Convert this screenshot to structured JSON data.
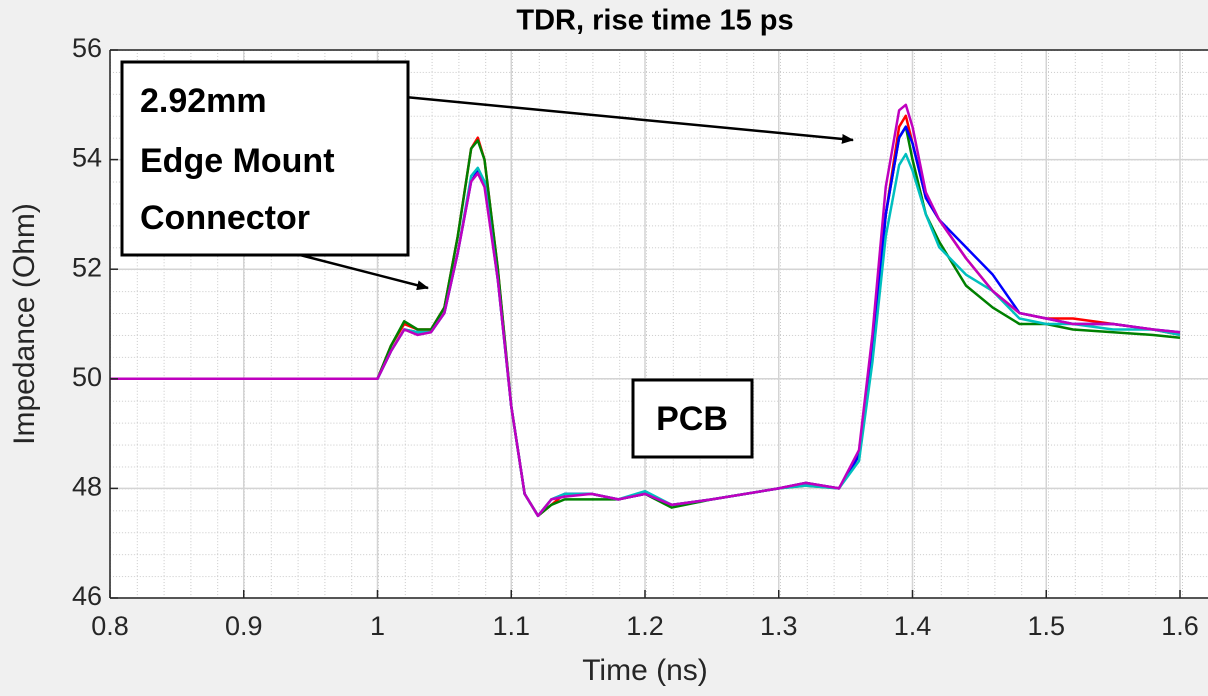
{
  "chart_data": {
    "type": "line",
    "title": "TDR, rise time 15 ps",
    "xlabel": "Time (ns)",
    "ylabel": "Impedance (Ohm)",
    "xlim": [
      0.8,
      1.6
    ],
    "ylim": [
      46,
      56
    ],
    "xticks": [
      0.8,
      0.9,
      1,
      1.1,
      1.2,
      1.3,
      1.4,
      1.5,
      1.6
    ],
    "yticks": [
      46,
      48,
      50,
      52,
      54,
      56
    ],
    "grid": true,
    "x": [
      0.8,
      0.9,
      0.98,
      1.0,
      1.01,
      1.02,
      1.03,
      1.04,
      1.05,
      1.06,
      1.07,
      1.075,
      1.08,
      1.09,
      1.1,
      1.11,
      1.12,
      1.13,
      1.14,
      1.16,
      1.18,
      1.2,
      1.22,
      1.25,
      1.3,
      1.32,
      1.345,
      1.36,
      1.37,
      1.38,
      1.39,
      1.395,
      1.4,
      1.41,
      1.42,
      1.44,
      1.46,
      1.48,
      1.5,
      1.52,
      1.55,
      1.58,
      1.6
    ],
    "series": [
      {
        "color": "#ff0000",
        "values": [
          50,
          50,
          50,
          50,
          50.6,
          51.0,
          50.9,
          50.9,
          51.3,
          52.6,
          54.2,
          54.4,
          54.0,
          52.0,
          49.5,
          47.9,
          47.5,
          47.7,
          47.9,
          47.9,
          47.8,
          47.9,
          47.7,
          47.8,
          48.0,
          48.1,
          48.0,
          48.6,
          50.5,
          53.0,
          54.6,
          54.8,
          54.3,
          53.3,
          52.9,
          52.2,
          51.6,
          51.2,
          51.1,
          51.1,
          51.0,
          50.9,
          50.8
        ]
      },
      {
        "color": "#008000",
        "values": [
          50,
          50,
          50,
          50,
          50.6,
          51.05,
          50.9,
          50.9,
          51.3,
          52.6,
          54.2,
          54.35,
          54.0,
          52.0,
          49.5,
          47.9,
          47.5,
          47.7,
          47.8,
          47.8,
          47.8,
          47.9,
          47.65,
          47.8,
          48.0,
          48.05,
          48.0,
          48.6,
          50.5,
          53.0,
          54.4,
          54.6,
          54.0,
          53.0,
          52.5,
          51.7,
          51.3,
          51.0,
          51.0,
          50.9,
          50.85,
          50.8,
          50.75
        ]
      },
      {
        "color": "#0000ff",
        "values": [
          50,
          50,
          50,
          50,
          50.5,
          50.9,
          50.85,
          50.85,
          51.2,
          52.3,
          53.6,
          53.8,
          53.6,
          51.8,
          49.5,
          47.9,
          47.5,
          47.8,
          47.9,
          47.9,
          47.8,
          47.9,
          47.7,
          47.8,
          48.0,
          48.1,
          48.0,
          48.6,
          50.5,
          53.0,
          54.4,
          54.6,
          54.3,
          53.3,
          52.9,
          52.4,
          51.9,
          51.2,
          51.1,
          51.0,
          51.0,
          50.9,
          50.85
        ]
      },
      {
        "color": "#00bfbf",
        "values": [
          50,
          50,
          50,
          50,
          50.5,
          50.9,
          50.85,
          50.85,
          51.2,
          52.3,
          53.7,
          53.85,
          53.6,
          51.8,
          49.5,
          47.9,
          47.5,
          47.8,
          47.9,
          47.9,
          47.8,
          47.95,
          47.7,
          47.8,
          48.0,
          48.05,
          48.0,
          48.5,
          50.3,
          52.6,
          53.9,
          54.1,
          53.8,
          53.0,
          52.4,
          51.9,
          51.6,
          51.1,
          51.0,
          51.0,
          50.9,
          50.9,
          50.8
        ]
      },
      {
        "color": "#bf00bf",
        "values": [
          50,
          50,
          50,
          50,
          50.5,
          50.9,
          50.8,
          50.85,
          51.2,
          52.3,
          53.6,
          53.75,
          53.5,
          51.8,
          49.5,
          47.9,
          47.5,
          47.8,
          47.85,
          47.9,
          47.8,
          47.9,
          47.7,
          47.8,
          48.0,
          48.1,
          48.0,
          48.7,
          50.8,
          53.5,
          54.9,
          55.0,
          54.6,
          53.4,
          52.9,
          52.2,
          51.6,
          51.2,
          51.1,
          51.0,
          51.0,
          50.9,
          50.85
        ]
      }
    ],
    "annotations": [
      {
        "lines": [
          "2.92mm",
          "Edge Mount",
          "Connector"
        ]
      },
      {
        "lines": [
          "PCB"
        ]
      }
    ]
  }
}
